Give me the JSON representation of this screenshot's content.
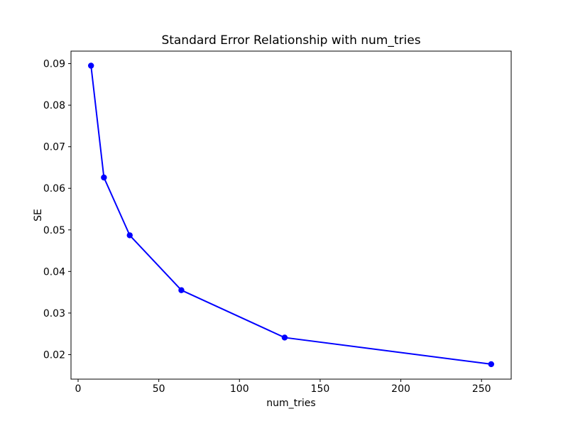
{
  "window": {
    "background": "#ffffff"
  },
  "chart_data": {
    "type": "line",
    "title": "Standard Error Relationship with num_tries",
    "xlabel": "num_tries",
    "ylabel": "SE",
    "x": [
      8,
      16,
      32,
      64,
      128,
      256
    ],
    "series": [
      {
        "name": "SE",
        "color": "#0000ff",
        "marker": "circle",
        "values": [
          0.0895,
          0.0626,
          0.0487,
          0.0355,
          0.0241,
          0.0177
        ]
      }
    ],
    "xlim": [
      -4.4,
      268.4
    ],
    "ylim": [
      0.0141,
      0.093
    ],
    "xticks": [
      0,
      50,
      100,
      150,
      200,
      250
    ],
    "xtick_labels": [
      "0",
      "50",
      "100",
      "150",
      "200",
      "250"
    ],
    "yticks": [
      0.02,
      0.03,
      0.04,
      0.05,
      0.06,
      0.07,
      0.08,
      0.09
    ],
    "ytick_labels": [
      "0.02",
      "0.03",
      "0.04",
      "0.05",
      "0.06",
      "0.07",
      "0.08",
      "0.09"
    ],
    "grid": false,
    "legend_position": "none",
    "axes_facecolor": "#ffffff",
    "spine_color": "#000000",
    "line_width": 2,
    "marker_radius": 4.2
  }
}
